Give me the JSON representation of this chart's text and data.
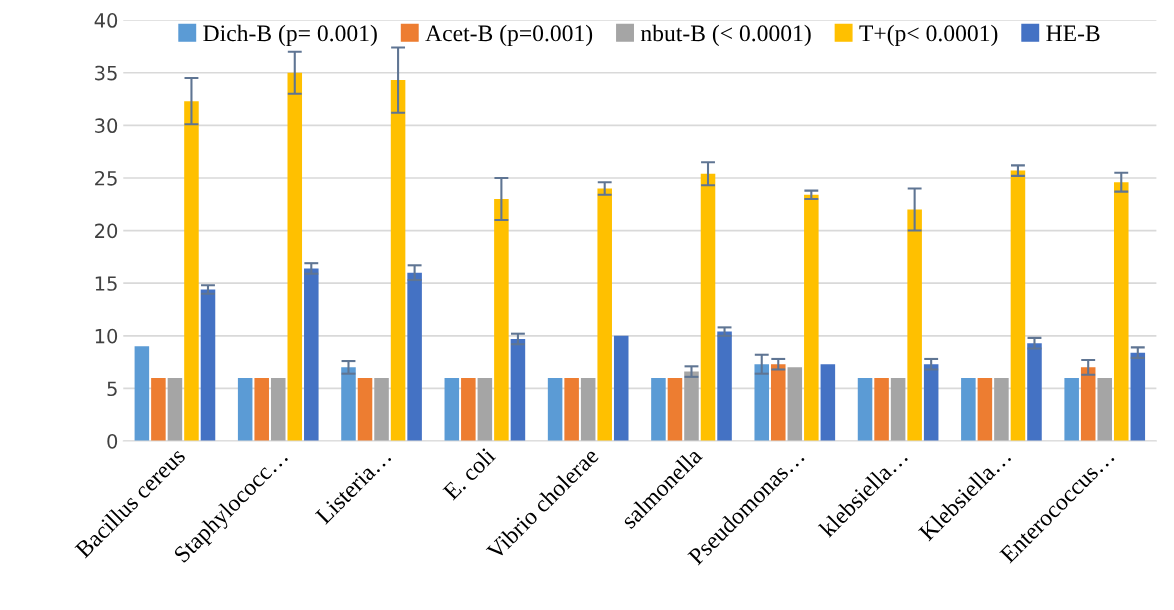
{
  "chart_data": {
    "type": "bar",
    "categories": [
      "Bacillus cereus",
      "Staphylococc…",
      "Listeria…",
      "E. coli",
      "Vibrio cholerae",
      "salmonella",
      "Pseudomonas…",
      "klebsiella…",
      "Klebsiella…",
      "Enterococcus…"
    ],
    "series": [
      {
        "name": "Dich-B (p= 0.001)",
        "color": "#5b9bd5",
        "values": [
          9,
          6,
          7,
          6,
          6,
          6,
          7.3,
          6,
          6,
          6
        ],
        "errors": [
          null,
          null,
          0.6,
          null,
          null,
          null,
          0.9,
          null,
          null,
          null
        ]
      },
      {
        "name": "Acet-B (p=0.001)",
        "color": "#ed7d31",
        "values": [
          6,
          6,
          6,
          6,
          6,
          6,
          7.3,
          6,
          6,
          7
        ],
        "errors": [
          null,
          null,
          null,
          null,
          null,
          null,
          0.5,
          null,
          null,
          0.7
        ]
      },
      {
        "name": "nbut-B (< 0.0001)",
        "color": "#a5a5a5",
        "values": [
          6,
          6,
          6,
          6,
          6,
          6.6,
          7,
          6,
          6,
          6
        ],
        "errors": [
          null,
          null,
          null,
          null,
          null,
          0.5,
          null,
          null,
          null,
          null
        ]
      },
      {
        "name": "T+(p< 0.0001)",
        "color": "#ffc000",
        "values": [
          32.3,
          35,
          34.3,
          23,
          24,
          25.4,
          23.4,
          22,
          25.7,
          24.6
        ],
        "errors": [
          2.2,
          2,
          3.1,
          2,
          0.6,
          1.1,
          0.4,
          2,
          0.5,
          0.9
        ]
      },
      {
        "name": "HE-B",
        "color": "#4472c4",
        "values": [
          14.4,
          16.4,
          16,
          9.7,
          10,
          10.4,
          7.3,
          7.3,
          9.3,
          8.4
        ],
        "errors": [
          0.4,
          0.5,
          0.7,
          0.5,
          null,
          0.4,
          null,
          0.5,
          0.5,
          0.5
        ]
      }
    ],
    "ylim": [
      0,
      40
    ],
    "yticks": [
      0,
      5,
      10,
      15,
      20,
      25,
      30,
      35,
      40
    ],
    "grid": "y",
    "legend": "top"
  }
}
